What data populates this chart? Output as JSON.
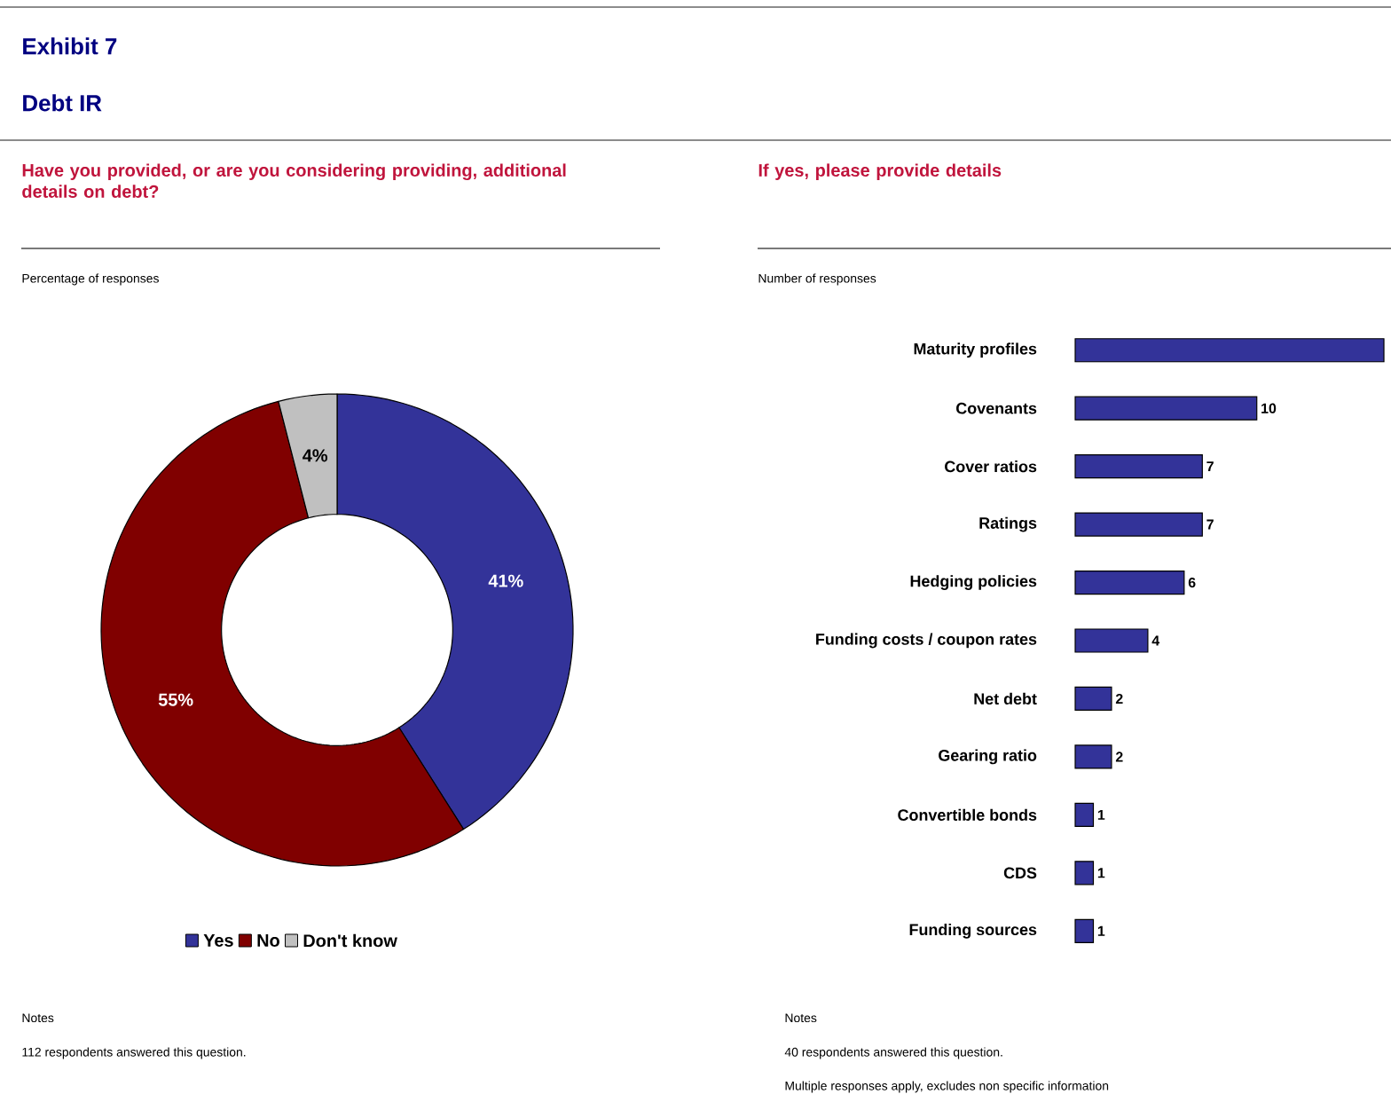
{
  "chart_data": [
    {
      "type": "donut",
      "title": "Have you provided, or are you considering providing, additional details on debt?",
      "subtitle": "Percentage of responses",
      "categories": [
        "Yes",
        "No",
        "Don't know"
      ],
      "values": [
        41,
        55,
        4
      ],
      "colors": [
        "#333399",
        "#800000",
        "#c0c0c0"
      ],
      "value_labels": [
        "41%",
        "55%",
        "4%"
      ],
      "legend": "bottom",
      "annotations": [
        "Exhibit 7",
        "Debt IR",
        "Notes",
        "112 respondents answered this question."
      ]
    },
    {
      "type": "bar",
      "orientation": "horizontal",
      "title": "If yes, please provide details",
      "subtitle": "Number of responses",
      "categories": [
        "Maturity profiles",
        "Covenants",
        "Cover ratios",
        "Ratings",
        "Hedging policies",
        "Funding costs / coupon rates",
        "Net debt",
        "Gearing ratio",
        "Convertible bonds",
        "CDS",
        "Funding sources"
      ],
      "values": [
        17,
        10,
        7,
        7,
        6,
        4,
        2,
        2,
        1,
        1,
        1
      ],
      "color": "#333399",
      "value_labels": [
        null,
        "10",
        "7",
        "7",
        "6",
        "4",
        "2",
        "2",
        "1",
        "1",
        "1"
      ],
      "annotations": [
        "Notes",
        "40 respondents answered this question.",
        "Multiple responses apply, excludes non specific information"
      ]
    }
  ]
}
